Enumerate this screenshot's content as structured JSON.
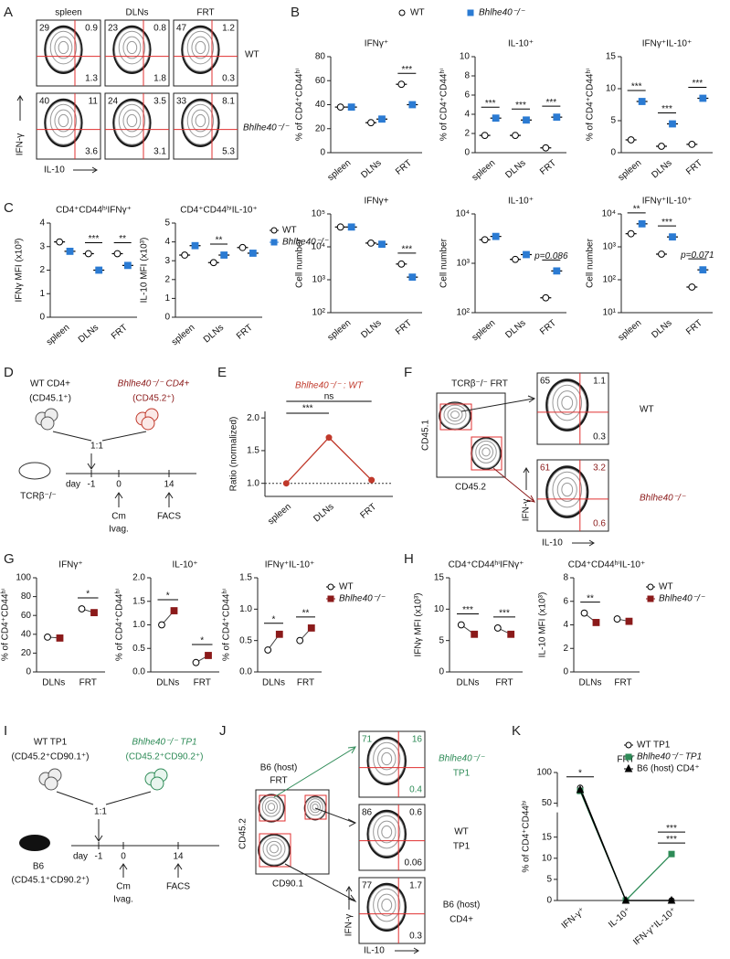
{
  "panel_labels": [
    "A",
    "B",
    "C",
    "D",
    "E",
    "F",
    "G",
    "H",
    "I",
    "J",
    "K"
  ],
  "A": {
    "columns": [
      "spleen",
      "DLNs",
      "FRT"
    ],
    "rows": [
      "WT",
      "Bhlhe40⁻/⁻"
    ],
    "y_label": "IFN-γ",
    "x_label": "IL-10",
    "plots": [
      [
        {
          "ul": 29,
          "ur": 0.9,
          "lr": 1.3
        },
        {
          "ul": 23,
          "ur": 0.8,
          "lr": 1.8
        },
        {
          "ul": 47,
          "ur": 1.2,
          "lr": 0.3
        }
      ],
      [
        {
          "ul": 40,
          "ur": 11,
          "lr": 3.6
        },
        {
          "ul": 24,
          "ur": 3.5,
          "lr": 3.1
        },
        {
          "ul": 33,
          "ur": 8.1,
          "lr": 5.3
        }
      ]
    ]
  },
  "D": {
    "donor1": [
      "WT CD4+",
      "(CD45.1⁺)"
    ],
    "donor2": [
      "Bhlhe40⁻/⁻ CD4+",
      "(CD45.2⁺)"
    ],
    "ratio": "1:1",
    "host": "TCRβ⁻/⁻",
    "timeline": {
      "label": "day",
      "days": [
        "-1",
        "0",
        "14"
      ],
      "events": [
        [
          "Cm",
          "Ivag."
        ],
        [
          "FACS"
        ]
      ]
    }
  },
  "F": {
    "title": "TCRβ⁻/⁻ FRT",
    "x_label": "CD45.2",
    "y_label": "CD45.1",
    "x_label2": "IL-10",
    "y_label2": "IFN-γ",
    "plots": [
      {
        "label": "WT",
        "ul": 65,
        "ur": 1.1,
        "lr": 0.3
      },
      {
        "label": "Bhlhe40⁻/⁻",
        "ul": 61,
        "ur": 3.2,
        "lr": 0.6
      }
    ]
  },
  "I": {
    "donor1": [
      "WT TP1",
      "(CD45.2⁺CD90.1⁺)"
    ],
    "donor2": [
      "Bhlhe40⁻/⁻ TP1",
      "(CD45.2⁺CD90.2⁺)"
    ],
    "ratio": "1:1",
    "host": [
      "B6",
      "(CD45.1⁺CD90.2⁺)"
    ],
    "timeline": {
      "label": "day",
      "days": [
        "-1",
        "0",
        "14"
      ],
      "events": [
        [
          "Cm",
          "Ivag."
        ],
        [
          "FACS"
        ]
      ]
    }
  },
  "J": {
    "title": [
      "B6 (host)",
      "FRT"
    ],
    "x_label": "CD90.1",
    "y_label": "CD45.2",
    "x_label2": "IL-10",
    "y_label2": "IFN-γ",
    "plots": [
      {
        "label": [
          "Bhlhe40⁻/⁻",
          "TP1"
        ],
        "ul": 71,
        "ur": 16,
        "lr": 0.4
      },
      {
        "label": [
          "WT",
          "TP1"
        ],
        "ul": 86,
        "ur": 0.6,
        "lr": 0.06
      },
      {
        "label": [
          "B6 (host)",
          "CD4+"
        ],
        "ul": 77,
        "ur": 1.7,
        "lr": 0.3
      }
    ]
  },
  "chart_data": [
    {
      "type": "dot",
      "title": "IFNγ⁺",
      "ylabel": "% of CD4⁺CD44ʰⁱ",
      "categories": [
        "spleen",
        "DLNs",
        "FRT"
      ],
      "ylim": [
        0,
        80
      ],
      "yticks": [
        0,
        20,
        40,
        60,
        80
      ],
      "series": [
        {
          "name": "WT",
          "color": "#000000",
          "fill": "#ffffff",
          "marker": "circle",
          "values": [
            38,
            25,
            57
          ]
        },
        {
          "name": "Bhlhe40⁻/⁻",
          "color": "#2b7bd3",
          "fill": "#2b7bd3",
          "marker": "square",
          "values": [
            38,
            28,
            40
          ]
        }
      ],
      "annotations": [
        {
          "text": "***",
          "at": "FRT"
        }
      ],
      "legend": "top"
    },
    {
      "type": "dot",
      "title": "IL-10⁺",
      "ylabel": "% of CD4⁺CD44ʰⁱ",
      "categories": [
        "spleen",
        "DLNs",
        "FRT"
      ],
      "ylim": [
        0,
        10
      ],
      "yticks": [
        0,
        2,
        4,
        6,
        8,
        10
      ],
      "series": [
        {
          "name": "WT",
          "color": "#000000",
          "fill": "#ffffff",
          "marker": "circle",
          "values": [
            1.8,
            1.8,
            0.5
          ]
        },
        {
          "name": "Bhlhe40⁻/⁻",
          "color": "#2b7bd3",
          "fill": "#2b7bd3",
          "marker": "square",
          "values": [
            3.6,
            3.4,
            3.7
          ]
        }
      ],
      "annotations": [
        {
          "text": "***",
          "at": "spleen"
        },
        {
          "text": "***",
          "at": "DLNs"
        },
        {
          "text": "***",
          "at": "FRT"
        }
      ]
    },
    {
      "type": "dot",
      "title": "IFNγ⁺IL-10⁺",
      "ylabel": "% of CD4⁺CD44ʰⁱ",
      "categories": [
        "spleen",
        "DLNs",
        "FRT"
      ],
      "ylim": [
        0,
        15
      ],
      "yticks": [
        0,
        5,
        10,
        15
      ],
      "series": [
        {
          "name": "WT",
          "color": "#000000",
          "fill": "#ffffff",
          "marker": "circle",
          "values": [
            2,
            1,
            1.3
          ]
        },
        {
          "name": "Bhlhe40⁻/⁻",
          "color": "#2b7bd3",
          "fill": "#2b7bd3",
          "marker": "square",
          "values": [
            8,
            4.5,
            8.5
          ]
        }
      ],
      "annotations": [
        {
          "text": "***",
          "at": "spleen"
        },
        {
          "text": "***",
          "at": "DLNs"
        },
        {
          "text": "***",
          "at": "FRT"
        }
      ]
    },
    {
      "type": "dot",
      "title": "IFNγ+",
      "ylabel": "Cell number",
      "categories": [
        "spleen",
        "DLNs",
        "FRT"
      ],
      "log": true,
      "ylim": [
        100,
        100000
      ],
      "yticks": [
        {
          "value": 100,
          "label": "10²"
        },
        {
          "value": 1000,
          "label": "10³"
        },
        {
          "value": 10000,
          "label": "10⁴"
        },
        {
          "value": 100000,
          "label": "10⁵"
        }
      ],
      "series": [
        {
          "name": "WT",
          "color": "#000000",
          "fill": "#ffffff",
          "marker": "circle",
          "values": [
            40000,
            13000,
            3000
          ]
        },
        {
          "name": "Bhlhe40⁻/⁻",
          "color": "#2b7bd3",
          "fill": "#2b7bd3",
          "marker": "square",
          "values": [
            40000,
            12000,
            1200
          ]
        }
      ],
      "annotations": [
        {
          "text": "***",
          "at": "FRT"
        }
      ]
    },
    {
      "type": "dot",
      "title": "IL-10⁺",
      "ylabel": "Cell number",
      "categories": [
        "spleen",
        "DLNs",
        "FRT"
      ],
      "log": true,
      "ylim": [
        100,
        10000
      ],
      "yticks": [
        {
          "value": 100,
          "label": "10²"
        },
        {
          "value": 1000,
          "label": "10³"
        },
        {
          "value": 10000,
          "label": "10⁴"
        }
      ],
      "series": [
        {
          "name": "WT",
          "color": "#000000",
          "fill": "#ffffff",
          "marker": "circle",
          "values": [
            3000,
            1200,
            200
          ]
        },
        {
          "name": "Bhlhe40⁻/⁻",
          "color": "#2b7bd3",
          "fill": "#2b7bd3",
          "marker": "square",
          "values": [
            3500,
            1500,
            700
          ]
        }
      ],
      "annotations": [
        {
          "text": "p=0.086",
          "at": "FRT"
        }
      ]
    },
    {
      "type": "dot",
      "title": "IFNγ⁺IL-10⁺",
      "ylabel": "Cell number",
      "categories": [
        "spleen",
        "DLNs",
        "FRT"
      ],
      "log": true,
      "ylim": [
        10,
        10000
      ],
      "yticks": [
        {
          "value": 10,
          "label": "10¹"
        },
        {
          "value": 100,
          "label": "10²"
        },
        {
          "value": 1000,
          "label": "10³"
        },
        {
          "value": 10000,
          "label": "10⁴"
        }
      ],
      "series": [
        {
          "name": "WT",
          "color": "#000000",
          "fill": "#ffffff",
          "marker": "circle",
          "values": [
            2500,
            600,
            60
          ]
        },
        {
          "name": "Bhlhe40⁻/⁻",
          "color": "#2b7bd3",
          "fill": "#2b7bd3",
          "marker": "square",
          "values": [
            5000,
            2000,
            200
          ]
        }
      ],
      "annotations": [
        {
          "text": "**",
          "at": "spleen"
        },
        {
          "text": "***",
          "at": "DLNs"
        },
        {
          "text": "p=0.071",
          "at": "FRT"
        }
      ]
    },
    {
      "type": "dot",
      "title": "CD4⁺CD44ʰⁱIFNγ⁺",
      "ylabel": "IFNγ MFI (x10³)",
      "categories": [
        "spleen",
        "DLNs",
        "FRT"
      ],
      "ylim": [
        0,
        4
      ],
      "yticks": [
        0,
        1,
        2,
        3,
        4
      ],
      "series": [
        {
          "name": "WT",
          "color": "#000000",
          "fill": "#ffffff",
          "marker": "circle",
          "values": [
            3.2,
            2.7,
            2.7
          ]
        },
        {
          "name": "Bhlhe40⁻/⁻",
          "color": "#2b7bd3",
          "fill": "#2b7bd3",
          "marker": "square",
          "values": [
            2.8,
            2.0,
            2.2
          ]
        }
      ],
      "annotations": [
        {
          "text": "***",
          "at": "DLNs"
        },
        {
          "text": "**",
          "at": "FRT"
        }
      ]
    },
    {
      "type": "dot",
      "title": "CD4⁺CD44ʰⁱIL-10⁺",
      "ylabel": "IL-10 MFI (x10³)",
      "categories": [
        "spleen",
        "DLNs",
        "FRT"
      ],
      "ylim": [
        0,
        5
      ],
      "yticks": [
        0,
        1,
        2,
        3,
        4,
        5
      ],
      "series": [
        {
          "name": "WT",
          "color": "#000000",
          "fill": "#ffffff",
          "marker": "circle",
          "values": [
            3.3,
            2.9,
            3.7
          ]
        },
        {
          "name": "Bhlhe40⁻/⁻",
          "color": "#2b7bd3",
          "fill": "#2b7bd3",
          "marker": "square",
          "values": [
            3.8,
            3.3,
            3.4
          ]
        }
      ],
      "annotations": [
        {
          "text": "**",
          "at": "DLNs"
        }
      ],
      "legend": "right"
    },
    {
      "type": "line",
      "title": "Bhlhe40⁻/⁻ : WT",
      "ylabel": "Ratio (normalized)",
      "categories": [
        "spleen",
        "DLNs",
        "FRT"
      ],
      "ylim": [
        0.8,
        2.1
      ],
      "yticks": [
        {
          "value": 1,
          "label": "1.0"
        },
        1.5,
        {
          "value": 2,
          "label": "2.0"
        }
      ],
      "hline": 1,
      "series": [
        {
          "color": "#c0392b",
          "fill": "#c0392b",
          "marker": "circle",
          "values": [
            1,
            1.7,
            1.05
          ]
        }
      ],
      "annotations": [
        {
          "text": "***",
          "from": "spleen",
          "to": "DLNs"
        },
        {
          "text": "ns",
          "from": "spleen",
          "to": "FRT"
        }
      ]
    },
    {
      "type": "dot",
      "paired": true,
      "title": "IFNγ⁺",
      "ylabel": "% of CD4⁺CD44ʰⁱ",
      "categories": [
        "DLNs",
        "FRT"
      ],
      "ylim": [
        0,
        100
      ],
      "yticks": [
        0,
        20,
        40,
        60,
        80,
        100
      ],
      "series": [
        {
          "name": "WT",
          "color": "#000000",
          "fill": "#ffffff",
          "marker": "circle",
          "values": [
            37,
            67
          ]
        },
        {
          "name": "Bhlhe40⁻/⁻",
          "color": "#8b1a1a",
          "fill": "#8b1a1a",
          "marker": "square",
          "values": [
            36,
            63
          ]
        }
      ],
      "annotations": [
        {
          "text": "*",
          "at": "FRT"
        }
      ]
    },
    {
      "type": "dot",
      "paired": true,
      "title": "IL-10⁺",
      "ylabel": "% of CD4⁺CD44ʰⁱ",
      "categories": [
        "DLNs",
        "FRT"
      ],
      "ylim": [
        0,
        2
      ],
      "yticks": [
        {
          "value": 0,
          "label": "0.0"
        },
        0.5,
        {
          "value": 1,
          "label": "1.0"
        },
        1.5,
        {
          "value": 2,
          "label": "2.0"
        }
      ],
      "series": [
        {
          "name": "WT",
          "color": "#000000",
          "fill": "#ffffff",
          "marker": "circle",
          "values": [
            1.0,
            0.2
          ]
        },
        {
          "name": "Bhlhe40⁻/⁻",
          "color": "#8b1a1a",
          "fill": "#8b1a1a",
          "marker": "square",
          "values": [
            1.3,
            0.35
          ]
        }
      ],
      "annotations": [
        {
          "text": "*",
          "at": "DLNs"
        },
        {
          "text": "*",
          "at": "FRT"
        }
      ]
    },
    {
      "type": "dot",
      "paired": true,
      "title": "IFNγ⁺IL-10⁺",
      "ylabel": "% of CD4⁺CD44ʰⁱ",
      "categories": [
        "DLNs",
        "FRT"
      ],
      "ylim": [
        0,
        1.5
      ],
      "yticks": [
        {
          "value": 0,
          "label": "0.0"
        },
        0.5,
        {
          "value": 1,
          "label": "1.0"
        },
        1.5
      ],
      "series": [
        {
          "name": "WT",
          "color": "#000000",
          "fill": "#ffffff",
          "marker": "circle",
          "values": [
            0.35,
            0.5
          ]
        },
        {
          "name": "Bhlhe40⁻/⁻",
          "color": "#8b1a1a",
          "fill": "#8b1a1a",
          "marker": "square",
          "values": [
            0.6,
            0.7
          ]
        }
      ],
      "annotations": [
        {
          "text": "*",
          "at": "DLNs"
        },
        {
          "text": "**",
          "at": "FRT"
        }
      ],
      "legend": "right"
    },
    {
      "type": "dot",
      "paired": true,
      "title": "CD4⁺CD44ʰⁱIFNγ⁺",
      "ylabel": "IFNγ MFI (x10³)",
      "categories": [
        "DLNs",
        "FRT"
      ],
      "ylim": [
        0,
        15
      ],
      "yticks": [
        0,
        5,
        10,
        15
      ],
      "series": [
        {
          "name": "WT",
          "color": "#000000",
          "fill": "#ffffff",
          "marker": "circle",
          "values": [
            7.5,
            7
          ]
        },
        {
          "name": "Bhlhe40⁻/⁻",
          "color": "#8b1a1a",
          "fill": "#8b1a1a",
          "marker": "square",
          "values": [
            6,
            6
          ]
        }
      ],
      "annotations": [
        {
          "text": "***",
          "at": "DLNs"
        },
        {
          "text": "***",
          "at": "FRT"
        }
      ]
    },
    {
      "type": "dot",
      "paired": true,
      "title": "CD4⁺CD44ʰⁱIL-10⁺",
      "ylabel": "IL-10 MFI (x10³)",
      "categories": [
        "DLNs",
        "FRT"
      ],
      "ylim": [
        0,
        8
      ],
      "yticks": [
        0,
        2,
        4,
        6,
        8
      ],
      "series": [
        {
          "name": "WT",
          "color": "#000000",
          "fill": "#ffffff",
          "marker": "circle",
          "values": [
            5,
            4.5
          ]
        },
        {
          "name": "Bhlhe40⁻/⁻",
          "color": "#8b1a1a",
          "fill": "#8b1a1a",
          "marker": "square",
          "values": [
            4.2,
            4.3
          ]
        }
      ],
      "annotations": [
        {
          "text": "**",
          "at": "DLNs"
        }
      ],
      "legend": "right"
    },
    {
      "type": "line",
      "title": "FRT",
      "ylabel": "% of CD4⁺CD44ʰⁱ",
      "categories": [
        "IFN-γ⁺",
        "IL-10⁺",
        "IFN-γ⁺IL-10⁺"
      ],
      "ylim": [
        0,
        100
      ],
      "axis_break": [
        20,
        50
      ],
      "yticks": [
        0,
        5,
        10,
        15,
        50,
        100
      ],
      "series": [
        {
          "name": "WT TP1",
          "color": "#000000",
          "fill": "#ffffff",
          "marker": "circle",
          "values": [
            75,
            0,
            0
          ]
        },
        {
          "name": "Bhlhe40⁻/⁻ TP1",
          "color": "#2e8b57",
          "fill": "#2e8b57",
          "marker": "square",
          "values": [
            70,
            0,
            11
          ]
        },
        {
          "name": "B6 (host) CD4⁺",
          "color": "#000000",
          "fill": "#000000",
          "marker": "triangle",
          "values": [
            72,
            0,
            0
          ]
        }
      ],
      "annotations": [
        {
          "text": "*",
          "at": "IFN-γ⁺"
        },
        {
          "text": "***",
          "at": "IFN-γ⁺IL-10⁺"
        },
        {
          "text": "***",
          "at": "IFN-γ⁺IL-10⁺"
        }
      ],
      "legend": "top-right"
    }
  ]
}
